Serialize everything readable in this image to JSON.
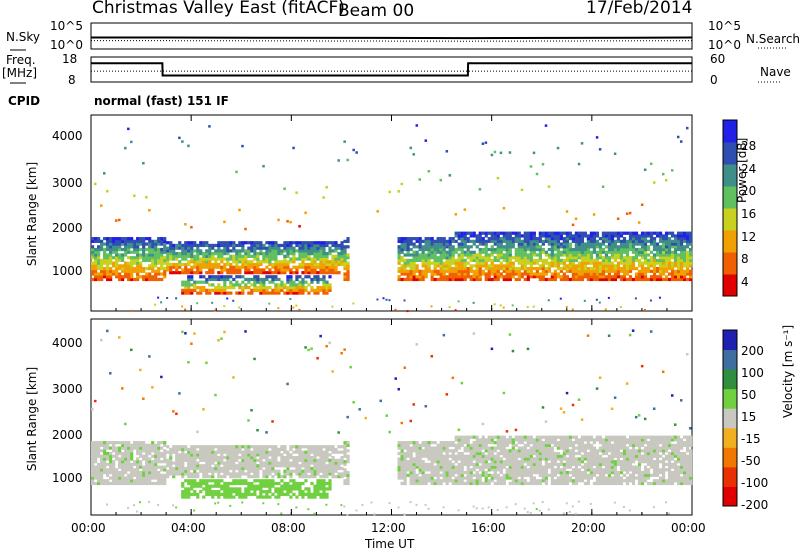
{
  "header": {
    "station": "Christmas Valley East (fitACF)",
    "beam": "Beam 00",
    "date": "17/Feb/2014"
  },
  "side_labels": {
    "nsky": "N.Sky",
    "nsearch": "N.Search",
    "freq": "Freq.",
    "freq_unit": "[MHz]",
    "nave": "Nave",
    "cpid": "CPID"
  },
  "cpid_text": "normal (fast) 151 IF",
  "axes": {
    "noise_left_ticks": [
      "10^5",
      "10^0"
    ],
    "noise_right_ticks": [
      "10^5",
      "10^0"
    ],
    "freq_ticks": [
      "18",
      "8"
    ],
    "nave_ticks": [
      "60",
      "0"
    ],
    "slant_range_ticks": [
      "4000",
      "3000",
      "2000",
      "1000"
    ],
    "time_ticks": [
      "00:00",
      "04:00",
      "08:00",
      "12:00",
      "16:00",
      "20:00",
      "00:00"
    ],
    "ylabel": "Slant Range [km]",
    "xlabel": "Time UT"
  },
  "colorbars": {
    "power": {
      "label": "Power [dB]",
      "ticks": [
        "28",
        "24",
        "20",
        "16",
        "12",
        "8",
        "4"
      ],
      "colors": [
        "#2020e6",
        "#2f4fb0",
        "#3f8f88",
        "#60c060",
        "#c8d020",
        "#f0a000",
        "#f06000",
        "#e00000"
      ]
    },
    "velocity": {
      "label": "Velocity [m s⁻¹]",
      "ticks": [
        "200",
        "100",
        "50",
        "15",
        "-15",
        "-50",
        "-100",
        "-200"
      ],
      "colors": [
        "#2020b0",
        "#3f6fa0",
        "#2f8f3f",
        "#70d040",
        "#c8c8c0",
        "#f0b020",
        "#f07800",
        "#e83000",
        "#e00000"
      ]
    }
  },
  "chart_data": [
    {
      "type": "line",
      "name": "noise",
      "x_hours": [
        0,
        2.9,
        3.0,
        15.0,
        15.1,
        24
      ],
      "series": [
        {
          "name": "N.Sky",
          "values": [
            2.2,
            2.2,
            2.2,
            2.1,
            2.1,
            2.2
          ]
        },
        {
          "name": "N.Search",
          "values": [
            1.6,
            1.6,
            1.6,
            1.5,
            1.5,
            1.6
          ]
        }
      ]
    },
    {
      "type": "line",
      "name": "frequency",
      "x_hours": [
        0,
        2.85,
        2.86,
        15.05,
        15.06,
        24
      ],
      "series": [
        {
          "name": "Freq.",
          "values": [
            15.5,
            15.5,
            10.6,
            10.6,
            15.5,
            15.5
          ]
        },
        {
          "name": "Nave",
          "values": [
            26,
            26,
            26,
            26,
            26,
            26
          ]
        }
      ],
      "ylim_freq": [
        8,
        18
      ],
      "ylim_nave": [
        0,
        60
      ]
    },
    {
      "type": "heatmap",
      "name": "power",
      "xlabel": "Time UT",
      "ylabel": "Slant Range [km]",
      "xlim_hours": [
        0,
        24
      ],
      "ylim_km": [
        180,
        4500
      ],
      "zlabel": "Power [dB]",
      "zlim": [
        0,
        30
      ]
    },
    {
      "type": "heatmap",
      "name": "velocity",
      "xlabel": "Time UT",
      "ylabel": "Slant Range [km]",
      "xlim_hours": [
        0,
        24
      ],
      "ylim_km": [
        180,
        4500
      ],
      "zlabel": "Velocity [m s⁻¹]",
      "zlim": [
        -200,
        200
      ]
    }
  ]
}
